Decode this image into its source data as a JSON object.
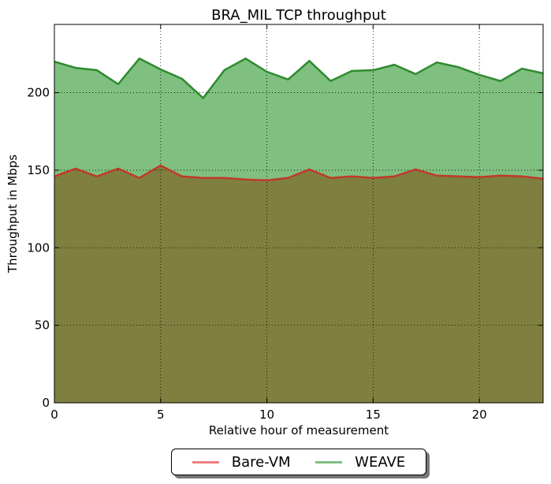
{
  "chart_data": {
    "type": "area",
    "title": "BRA_MIL TCP throughput",
    "xlabel": "Relative hour of measurement",
    "ylabel": "Throughput in Mbps",
    "xlim": [
      0,
      23
    ],
    "ylim": [
      0,
      244
    ],
    "xticks": [
      0,
      5,
      10,
      15,
      20
    ],
    "yticks": [
      0,
      50,
      100,
      150,
      200
    ],
    "grid": true,
    "legend_position": "bottom-center",
    "x": [
      0,
      1,
      2,
      3,
      4,
      5,
      6,
      7,
      8,
      9,
      10,
      11,
      12,
      13,
      14,
      15,
      16,
      17,
      18,
      19,
      20,
      21,
      22,
      23
    ],
    "series": [
      {
        "name": "Bare-VM",
        "line_color": "#c0392b",
        "fill_color": "#7f7f3f",
        "legend_color": "#f08080",
        "values": [
          146,
          151,
          146,
          151,
          145,
          153,
          146,
          145,
          145,
          144,
          143.5,
          145,
          150.5,
          145,
          146,
          145,
          146,
          150.5,
          146.5,
          146,
          145.5,
          146.5,
          146,
          144.5
        ]
      },
      {
        "name": "WEAVE",
        "line_color": "#2e8b2e",
        "fill_color": "#7fbf7f",
        "legend_color": "#7fbf7f",
        "values": [
          220,
          216,
          214.5,
          205.5,
          222,
          215,
          209,
          196.5,
          214.5,
          222,
          213.5,
          208.5,
          220.5,
          207.5,
          214,
          214.5,
          218,
          212,
          219.5,
          216.5,
          211.5,
          207.5,
          215.5,
          212.5
        ]
      }
    ]
  }
}
